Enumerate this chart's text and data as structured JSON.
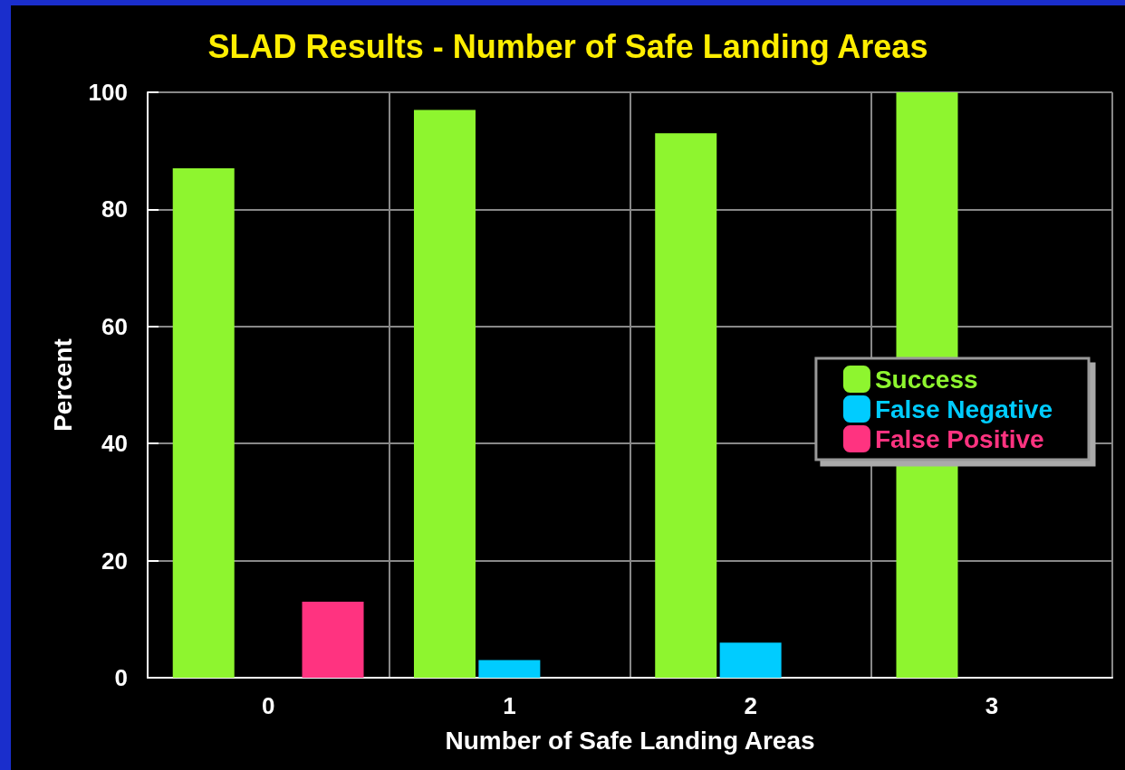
{
  "chart_data": {
    "type": "bar",
    "title": "SLAD Results - Number of Safe Landing Areas",
    "xlabel": "Number of Safe Landing Areas",
    "ylabel": "Percent",
    "categories": [
      "0",
      "1",
      "2",
      "3"
    ],
    "series": [
      {
        "name": "Success",
        "color": "#8ef52f",
        "values": [
          87,
          97,
          93,
          100
        ]
      },
      {
        "name": "False Negative",
        "color": "#00ccff",
        "values": [
          null,
          3,
          6,
          null
        ]
      },
      {
        "name": "False Positive",
        "color": "#ff3380",
        "values": [
          13,
          null,
          null,
          null
        ]
      }
    ],
    "ylim": [
      0,
      100
    ],
    "yticks": [
      0,
      20,
      40,
      60,
      80,
      100
    ],
    "grid": true,
    "legend": "right"
  }
}
